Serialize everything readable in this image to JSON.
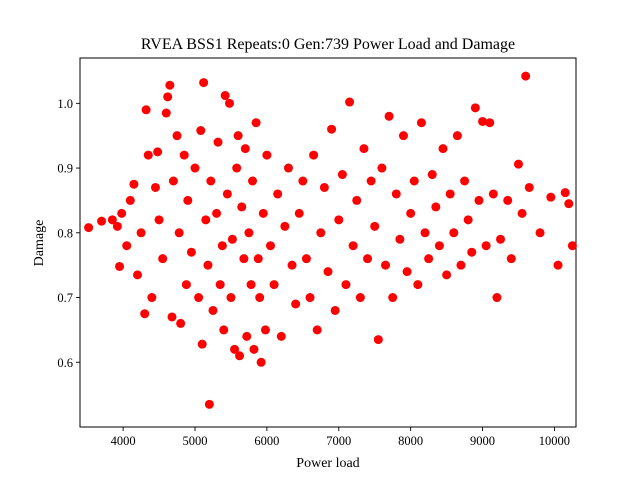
{
  "chart_data": {
    "type": "scatter",
    "title": "RVEA BSS1 Repeats:0 Gen:739 Power Load and Damage",
    "xlabel": "Power load",
    "ylabel": "Damage",
    "xlim": [
      3400,
      10300
    ],
    "ylim": [
      0.5,
      1.07
    ],
    "xticks": [
      "4000",
      "5000",
      "6000",
      "7000",
      "8000",
      "9000",
      "10000"
    ],
    "yticks": [
      "0.6",
      "0.7",
      "0.8",
      "0.9",
      "1.0"
    ],
    "grid": false,
    "legend": "none",
    "marker_color": "#ff0000",
    "points": [
      [
        3520,
        0.808
      ],
      [
        3700,
        0.818
      ],
      [
        3850,
        0.82
      ],
      [
        3920,
        0.81
      ],
      [
        3950,
        0.748
      ],
      [
        3980,
        0.83
      ],
      [
        4050,
        0.78
      ],
      [
        4100,
        0.85
      ],
      [
        4150,
        0.875
      ],
      [
        4200,
        0.735
      ],
      [
        4250,
        0.8
      ],
      [
        4300,
        0.675
      ],
      [
        4320,
        0.99
      ],
      [
        4350,
        0.92
      ],
      [
        4400,
        0.7
      ],
      [
        4450,
        0.87
      ],
      [
        4480,
        0.925
      ],
      [
        4500,
        0.82
      ],
      [
        4550,
        0.76
      ],
      [
        4600,
        0.985
      ],
      [
        4620,
        1.01
      ],
      [
        4650,
        1.028
      ],
      [
        4680,
        0.67
      ],
      [
        4700,
        0.88
      ],
      [
        4750,
        0.95
      ],
      [
        4780,
        0.8
      ],
      [
        4800,
        0.66
      ],
      [
        4850,
        0.92
      ],
      [
        4880,
        0.72
      ],
      [
        4900,
        0.85
      ],
      [
        4950,
        0.77
      ],
      [
        5000,
        0.9
      ],
      [
        5050,
        0.7
      ],
      [
        5080,
        0.958
      ],
      [
        5100,
        0.628
      ],
      [
        5120,
        1.032
      ],
      [
        5150,
        0.82
      ],
      [
        5180,
        0.75
      ],
      [
        5200,
        0.535
      ],
      [
        5220,
        0.88
      ],
      [
        5250,
        0.68
      ],
      [
        5300,
        0.83
      ],
      [
        5320,
        0.94
      ],
      [
        5350,
        0.72
      ],
      [
        5380,
        0.78
      ],
      [
        5400,
        0.65
      ],
      [
        5420,
        1.012
      ],
      [
        5450,
        0.86
      ],
      [
        5480,
        1.0
      ],
      [
        5500,
        0.7
      ],
      [
        5520,
        0.79
      ],
      [
        5550,
        0.62
      ],
      [
        5580,
        0.9
      ],
      [
        5600,
        0.95
      ],
      [
        5620,
        0.61
      ],
      [
        5650,
        0.84
      ],
      [
        5680,
        0.76
      ],
      [
        5700,
        0.93
      ],
      [
        5720,
        0.64
      ],
      [
        5750,
        0.8
      ],
      [
        5780,
        0.72
      ],
      [
        5800,
        0.88
      ],
      [
        5820,
        0.62
      ],
      [
        5850,
        0.97
      ],
      [
        5880,
        0.76
      ],
      [
        5900,
        0.7
      ],
      [
        5920,
        0.6
      ],
      [
        5950,
        0.83
      ],
      [
        5980,
        0.65
      ],
      [
        6000,
        0.92
      ],
      [
        6050,
        0.78
      ],
      [
        6100,
        0.72
      ],
      [
        6150,
        0.86
      ],
      [
        6200,
        0.64
      ],
      [
        6250,
        0.81
      ],
      [
        6300,
        0.9
      ],
      [
        6350,
        0.75
      ],
      [
        6400,
        0.69
      ],
      [
        6450,
        0.83
      ],
      [
        6500,
        0.88
      ],
      [
        6550,
        0.76
      ],
      [
        6600,
        0.7
      ],
      [
        6650,
        0.92
      ],
      [
        6700,
        0.65
      ],
      [
        6750,
        0.8
      ],
      [
        6800,
        0.87
      ],
      [
        6850,
        0.74
      ],
      [
        6900,
        0.96
      ],
      [
        6950,
        0.68
      ],
      [
        7000,
        0.82
      ],
      [
        7050,
        0.89
      ],
      [
        7100,
        0.72
      ],
      [
        7150,
        1.002
      ],
      [
        7200,
        0.78
      ],
      [
        7250,
        0.85
      ],
      [
        7300,
        0.7
      ],
      [
        7350,
        0.93
      ],
      [
        7400,
        0.76
      ],
      [
        7450,
        0.88
      ],
      [
        7500,
        0.81
      ],
      [
        7550,
        0.635
      ],
      [
        7600,
        0.9
      ],
      [
        7650,
        0.75
      ],
      [
        7700,
        0.98
      ],
      [
        7750,
        0.7
      ],
      [
        7800,
        0.86
      ],
      [
        7850,
        0.79
      ],
      [
        7900,
        0.95
      ],
      [
        7950,
        0.74
      ],
      [
        8000,
        0.83
      ],
      [
        8050,
        0.88
      ],
      [
        8100,
        0.72
      ],
      [
        8150,
        0.97
      ],
      [
        8200,
        0.8
      ],
      [
        8250,
        0.76
      ],
      [
        8300,
        0.89
      ],
      [
        8350,
        0.84
      ],
      [
        8400,
        0.78
      ],
      [
        8450,
        0.93
      ],
      [
        8500,
        0.735
      ],
      [
        8550,
        0.86
      ],
      [
        8600,
        0.8
      ],
      [
        8650,
        0.95
      ],
      [
        8700,
        0.75
      ],
      [
        8750,
        0.88
      ],
      [
        8800,
        0.82
      ],
      [
        8850,
        0.77
      ],
      [
        8900,
        0.993
      ],
      [
        8950,
        0.85
      ],
      [
        9000,
        0.972
      ],
      [
        9050,
        0.78
      ],
      [
        9100,
        0.97
      ],
      [
        9150,
        0.86
      ],
      [
        9200,
        0.7
      ],
      [
        9250,
        0.79
      ],
      [
        9350,
        0.85
      ],
      [
        9400,
        0.76
      ],
      [
        9500,
        0.906
      ],
      [
        9550,
        0.83
      ],
      [
        9600,
        1.042
      ],
      [
        9650,
        0.87
      ],
      [
        9800,
        0.8
      ],
      [
        9950,
        0.855
      ],
      [
        10050,
        0.75
      ],
      [
        10150,
        0.862
      ],
      [
        10200,
        0.845
      ],
      [
        10250,
        0.78
      ]
    ]
  }
}
